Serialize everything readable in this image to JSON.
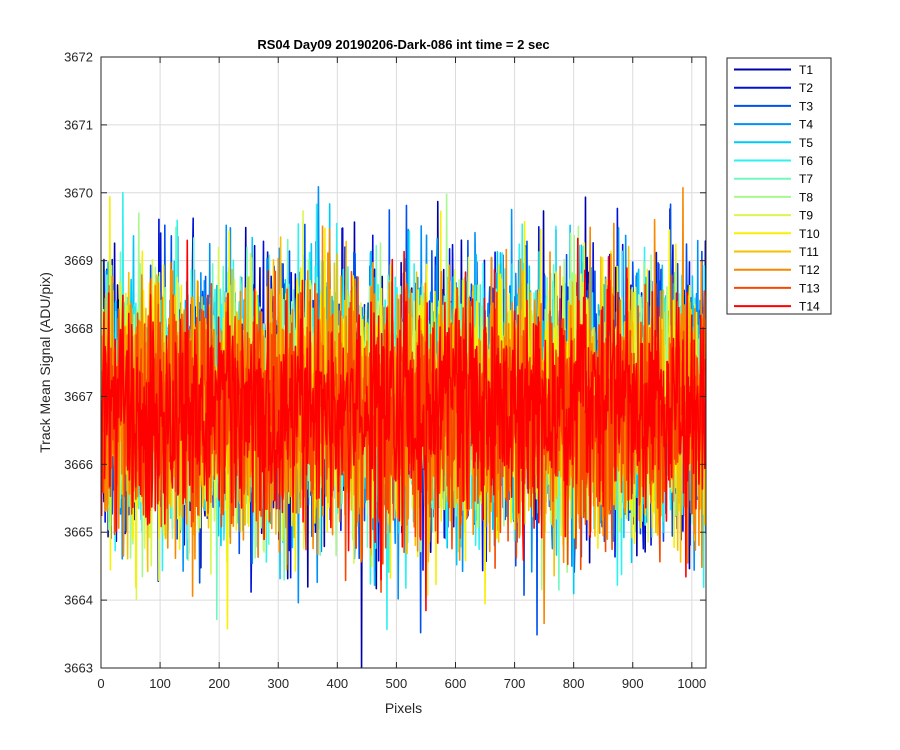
{
  "chart_data": {
    "type": "line",
    "title": "RS04 Day09 20190206-Dark-086 int time = 2 sec",
    "xlabel": "Pixels",
    "ylabel": "Track Mean Signal (ADU/pix)",
    "xlim": [
      0,
      1024
    ],
    "ylim": [
      3663,
      3672
    ],
    "xticks": [
      0,
      100,
      200,
      300,
      400,
      500,
      600,
      700,
      800,
      900,
      1000
    ],
    "yticks": [
      3663,
      3664,
      3665,
      3666,
      3667,
      3668,
      3669,
      3670,
      3671,
      3672
    ],
    "grid": true,
    "legend_position": "outside-top-right",
    "series": [
      {
        "name": "T1",
        "color": "#0000a8",
        "mean": 3667.0,
        "noise_sd": 0.95
      },
      {
        "name": "T2",
        "color": "#0011d8",
        "mean": 3667.0,
        "noise_sd": 0.95
      },
      {
        "name": "T3",
        "color": "#0050f0",
        "mean": 3667.0,
        "noise_sd": 0.95
      },
      {
        "name": "T4",
        "color": "#0090f8",
        "mean": 3667.0,
        "noise_sd": 0.95
      },
      {
        "name": "T5",
        "color": "#00c8f8",
        "mean": 3667.0,
        "noise_sd": 0.95
      },
      {
        "name": "T6",
        "color": "#30f0f0",
        "mean": 3667.0,
        "noise_sd": 0.95
      },
      {
        "name": "T7",
        "color": "#70f8c0",
        "mean": 3666.9,
        "noise_sd": 0.9
      },
      {
        "name": "T8",
        "color": "#a8f890",
        "mean": 3666.9,
        "noise_sd": 0.9
      },
      {
        "name": "T9",
        "color": "#d8f850",
        "mean": 3666.9,
        "noise_sd": 0.9
      },
      {
        "name": "T10",
        "color": "#f8f000",
        "mean": 3666.9,
        "noise_sd": 0.9
      },
      {
        "name": "T11",
        "color": "#f8c000",
        "mean": 3666.8,
        "noise_sd": 0.9
      },
      {
        "name": "T12",
        "color": "#f88800",
        "mean": 3666.8,
        "noise_sd": 0.9
      },
      {
        "name": "T13",
        "color": "#f84800",
        "mean": 3666.8,
        "noise_sd": 0.9
      },
      {
        "name": "T14",
        "color": "#ff0000",
        "mean": 3666.8,
        "noise_sd": 0.85
      }
    ],
    "n_points": 1024
  }
}
